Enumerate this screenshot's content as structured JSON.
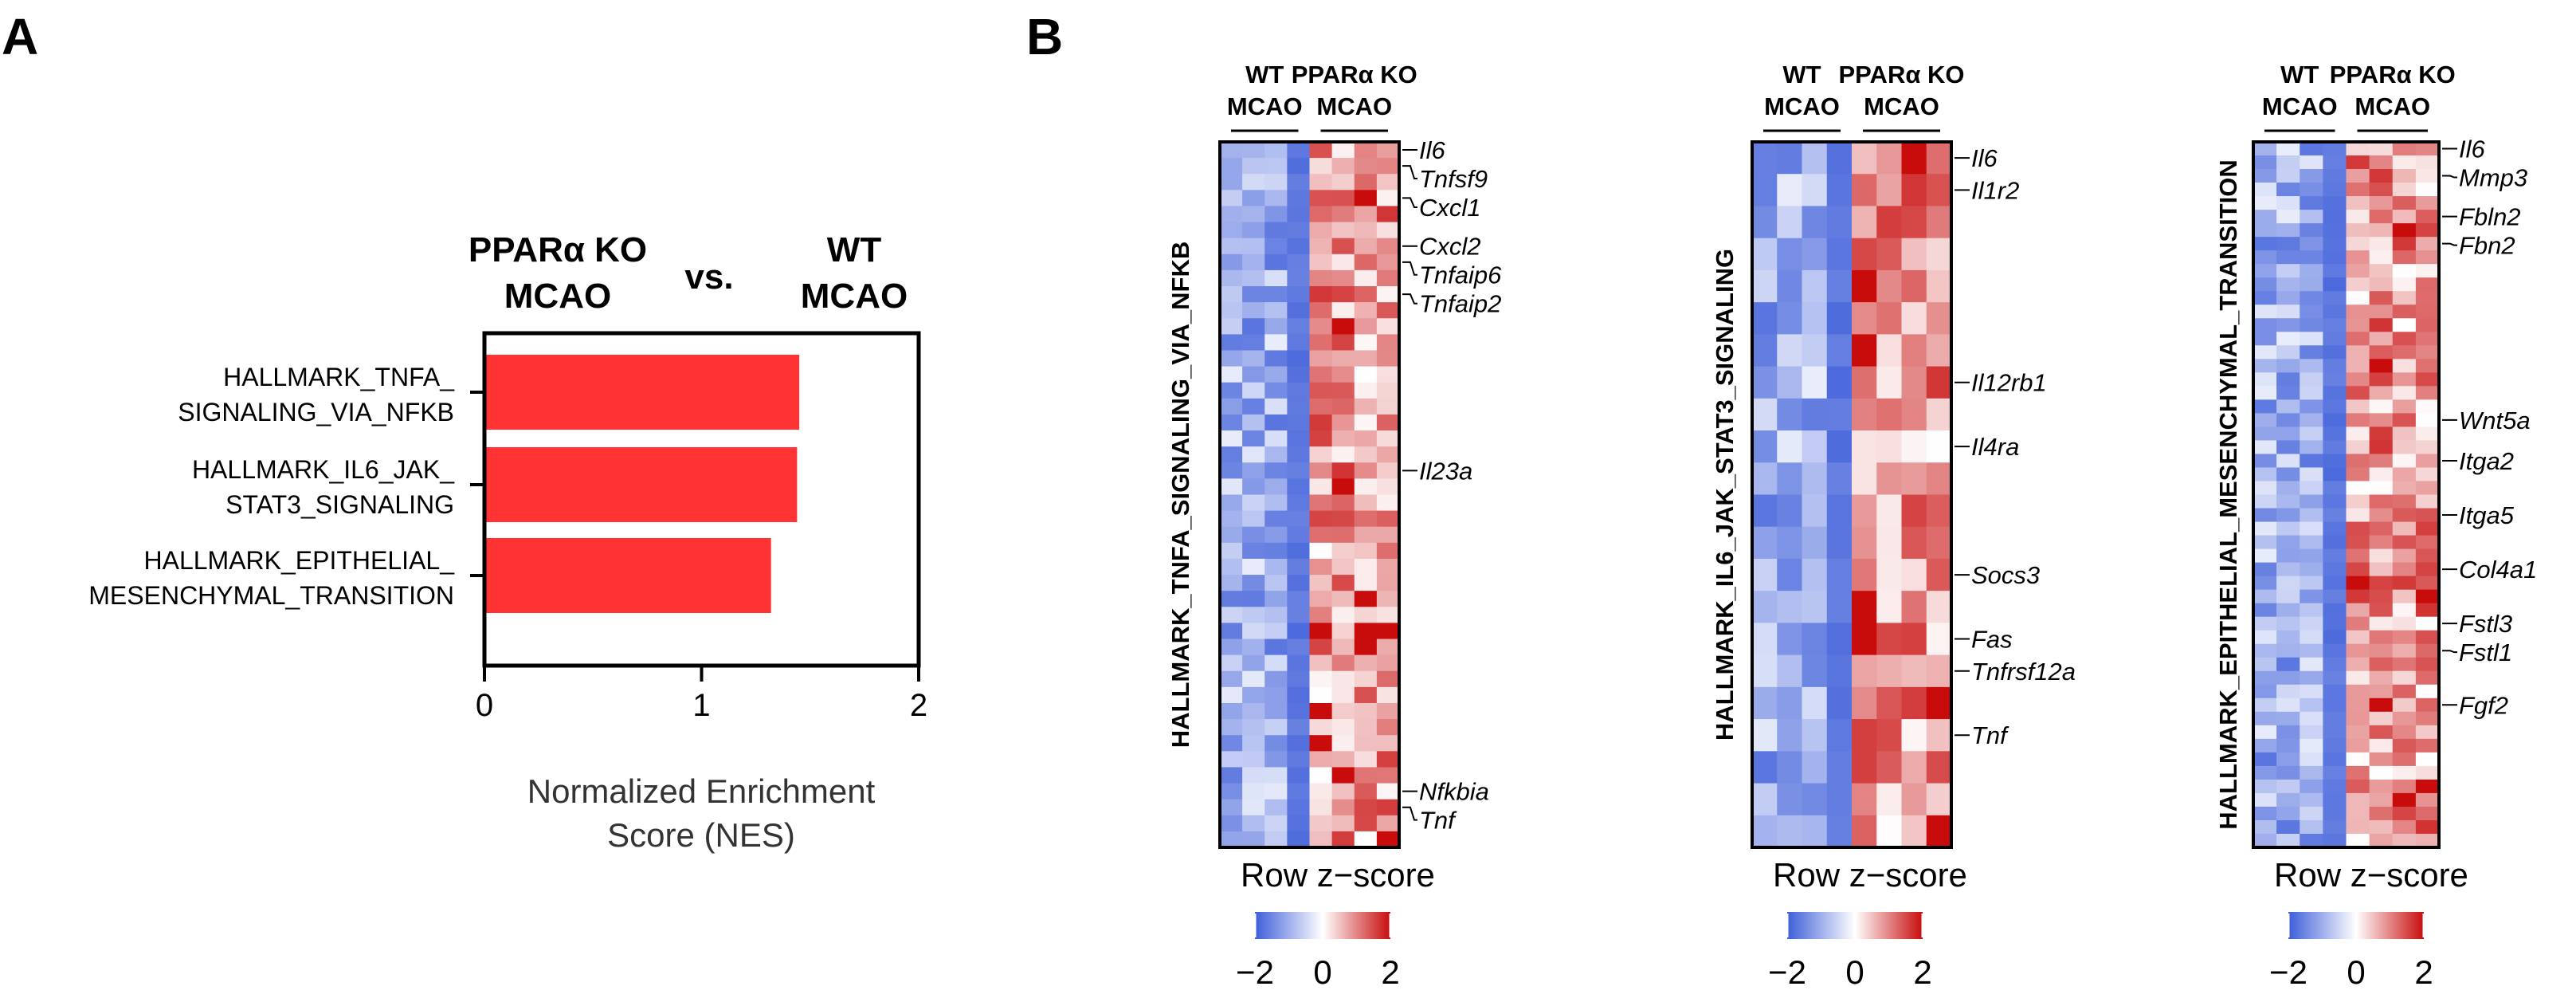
{
  "panel_labels": {
    "a": "A",
    "b": "B"
  },
  "colors": {
    "bar": "#ff3333",
    "low": "#3e5ed9",
    "mid": "#ffffff",
    "high": "#c80c0c"
  },
  "chart_data": [
    {
      "type": "bar",
      "orientation": "horizontal",
      "title_left": [
        "PPARα KO",
        "MCAO"
      ],
      "title_mid": "vs.",
      "title_right": [
        "WT",
        "MCAO"
      ],
      "categories": [
        [
          "HALLMARK_TNFA_",
          "SIGNALING_VIA_NFKB"
        ],
        [
          "HALLMARK_IL6_JAK_",
          "STAT3_SIGNALING"
        ],
        [
          "HALLMARK_EPITHELIAL_",
          "MESENCHYMAL_TRANSITION"
        ]
      ],
      "values": [
        1.45,
        1.44,
        1.32
      ],
      "xlim": [
        0,
        2
      ],
      "xticks": [
        "0",
        "1",
        "2"
      ],
      "xlabel": [
        "Normalized Enrichment",
        "Score (NES)"
      ]
    },
    {
      "type": "heatmap",
      "title": "HALLMARK_TNFA_SIGNALING_VIA_NFKB",
      "columns": [
        {
          "label": [
            "WT",
            "MCAO"
          ],
          "n": 4
        },
        {
          "label": [
            "PPARα KO",
            "MCAO"
          ],
          "n": 4
        }
      ],
      "n_rows": 44,
      "seed": 11,
      "genes": [
        {
          "name": "Il6",
          "row": 0
        },
        {
          "name": "Tnfsf9",
          "row": 1
        },
        {
          "name": "Cxcl1",
          "row": 3
        },
        {
          "name": "Cxcl2",
          "row": 6
        },
        {
          "name": "Tnfaip6",
          "row": 7
        },
        {
          "name": "Tnfaip2",
          "row": 9
        },
        {
          "name": "Il23a",
          "row": 20
        },
        {
          "name": "Nfkbia",
          "row": 40
        },
        {
          "name": "Tnf",
          "row": 41
        }
      ],
      "colorbar": {
        "label": "Row z−score",
        "ticks": [
          "−2",
          "0",
          "2"
        ],
        "range": [
          -2,
          2
        ]
      }
    },
    {
      "type": "heatmap",
      "title": "HALLMARK_IL6_JAK_STAT3_SIGNALING",
      "columns": [
        {
          "label": [
            "WT",
            "MCAO"
          ],
          "n": 4
        },
        {
          "label": [
            "PPARα KO",
            "MCAO"
          ],
          "n": 4
        }
      ],
      "n_rows": 22,
      "seed": 23,
      "genes": [
        {
          "name": "Il6",
          "row": 0
        },
        {
          "name": "Il1r2",
          "row": 1
        },
        {
          "name": "Il12rb1",
          "row": 7
        },
        {
          "name": "Il4ra",
          "row": 9
        },
        {
          "name": "Socs3",
          "row": 13
        },
        {
          "name": "Fas",
          "row": 15
        },
        {
          "name": "Tnfrsf12a",
          "row": 16
        },
        {
          "name": "Tnf",
          "row": 18
        }
      ],
      "colorbar": {
        "label": "Row z−score",
        "ticks": [
          "−2",
          "0",
          "2"
        ],
        "range": [
          -2,
          2
        ]
      }
    },
    {
      "type": "heatmap",
      "title": "HALLMARK_EPITHELIAL_MESENCHYMAL_TRANSITION",
      "columns": [
        {
          "label": [
            "WT",
            "MCAO"
          ],
          "n": 4
        },
        {
          "label": [
            "PPARα KO",
            "MCAO"
          ],
          "n": 4
        }
      ],
      "n_rows": 52,
      "seed": 37,
      "genes": [
        {
          "name": "Il6",
          "row": 0
        },
        {
          "name": "Mmp3",
          "row": 2
        },
        {
          "name": "Fbln2",
          "row": 5
        },
        {
          "name": "Fbn2",
          "row": 7
        },
        {
          "name": "Wnt5a",
          "row": 20
        },
        {
          "name": "Itga2",
          "row": 23
        },
        {
          "name": "Itga5",
          "row": 27
        },
        {
          "name": "Col4a1",
          "row": 31
        },
        {
          "name": "Fstl3",
          "row": 35
        },
        {
          "name": "Fstl1",
          "row": 37
        },
        {
          "name": "Fgf2",
          "row": 41
        }
      ],
      "colorbar": {
        "label": "Row z−score",
        "ticks": [
          "−2",
          "0",
          "2"
        ],
        "range": [
          -2,
          2
        ]
      }
    }
  ]
}
